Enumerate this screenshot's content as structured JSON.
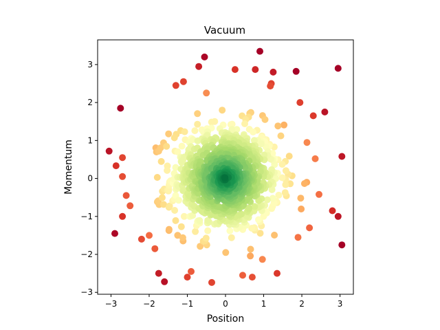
{
  "chart_data": {
    "type": "scatter",
    "title": "Vacuum",
    "xlabel": "Position",
    "ylabel": "Momentum",
    "xlim": [
      -3.35,
      3.35
    ],
    "ylim": [
      -3.05,
      3.65
    ],
    "xticks": [
      -3,
      -2,
      -1,
      0,
      1,
      2,
      3
    ],
    "yticks": [
      -3,
      -2,
      -1,
      0,
      1,
      2,
      3
    ],
    "grid": false,
    "colormap": "RdYlGn_r",
    "color_by": "distance from origin (center green, edge red)",
    "n_points": 1000,
    "distribution": "2D Gaussian, mean 0, std ~0.71 per axis",
    "outer_points": [
      {
        "x": -0.55,
        "y": 3.2
      },
      {
        "x": -0.7,
        "y": 2.95
      },
      {
        "x": 0.9,
        "y": 3.35
      },
      {
        "x": 0.25,
        "y": 2.87
      },
      {
        "x": 0.78,
        "y": 2.87
      },
      {
        "x": 1.25,
        "y": 2.8
      },
      {
        "x": 1.85,
        "y": 2.82
      },
      {
        "x": 2.95,
        "y": 2.9
      },
      {
        "x": -2.75,
        "y": 1.85
      },
      {
        "x": -3.05,
        "y": 0.72
      },
      {
        "x": -2.7,
        "y": 0.55
      },
      {
        "x": -2.7,
        "y": 0.05
      },
      {
        "x": -2.6,
        "y": -0.45
      },
      {
        "x": -2.5,
        "y": -0.72
      },
      {
        "x": -2.7,
        "y": -1.0
      },
      {
        "x": -2.9,
        "y": -1.45
      },
      {
        "x": 3.05,
        "y": 0.58
      },
      {
        "x": 2.6,
        "y": 1.75
      },
      {
        "x": 2.8,
        "y": -0.85
      },
      {
        "x": 3.05,
        "y": -1.75
      },
      {
        "x": 2.95,
        "y": -1.0
      },
      {
        "x": -1.75,
        "y": -2.5
      },
      {
        "x": -1.6,
        "y": -2.72
      },
      {
        "x": -1.0,
        "y": -2.6
      },
      {
        "x": -0.9,
        "y": -2.45
      },
      {
        "x": 0.7,
        "y": -2.6
      },
      {
        "x": 0.45,
        "y": -2.55
      },
      {
        "x": 1.35,
        "y": -2.5
      },
      {
        "x": 1.95,
        "y": 2.0
      },
      {
        "x": 2.3,
        "y": 1.65
      },
      {
        "x": 2.35,
        "y": 0.52
      },
      {
        "x": 2.45,
        "y": -0.42
      },
      {
        "x": 2.2,
        "y": -1.3
      },
      {
        "x": 1.9,
        "y": -1.55
      },
      {
        "x": -2.2,
        "y": -1.6
      },
      {
        "x": -2.0,
        "y": -1.5
      },
      {
        "x": -1.85,
        "y": -1.85
      },
      {
        "x": -1.1,
        "y": 2.55
      },
      {
        "x": -1.3,
        "y": 2.45
      },
      {
        "x": -0.5,
        "y": 2.25
      },
      {
        "x": 1.2,
        "y": 2.5
      }
    ],
    "colors": {
      "ramp": [
        "#006837",
        "#1a9850",
        "#66bd63",
        "#a6d96a",
        "#d9ef8b",
        "#ffffbf",
        "#fee08b",
        "#fdae61",
        "#f46d43",
        "#d73027",
        "#a50026"
      ],
      "axis": "#000000",
      "background": "#ffffff"
    }
  }
}
